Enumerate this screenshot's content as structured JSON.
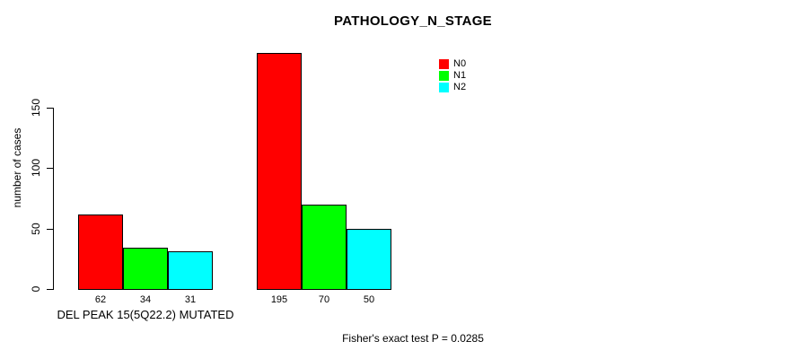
{
  "background_color": "#ffffff",
  "chart_data": {
    "type": "bar",
    "title": "PATHOLOGY_N_STAGE",
    "xlabel": "",
    "ylabel": "number of cases",
    "ylim": [
      0,
      150
    ],
    "yticks": [
      0,
      50,
      100,
      150
    ],
    "grid": false,
    "legend_position": "top-right",
    "series": [
      {
        "name": "N0",
        "color": "#ff0000"
      },
      {
        "name": "N1",
        "color": "#00ff00"
      },
      {
        "name": "N2",
        "color": "#00ffff"
      }
    ],
    "groups": [
      {
        "label": "DEL PEAK 15(5Q22.2) MUTATED",
        "values": [
          62,
          34,
          31
        ]
      },
      {
        "label": "",
        "values": [
          195,
          70,
          50
        ]
      }
    ],
    "bar_value_labels": [
      62,
      34,
      31,
      195,
      70,
      50
    ],
    "bar_border_color": "#000000",
    "annotation": "Fisher's exact test P = 0.0285"
  }
}
